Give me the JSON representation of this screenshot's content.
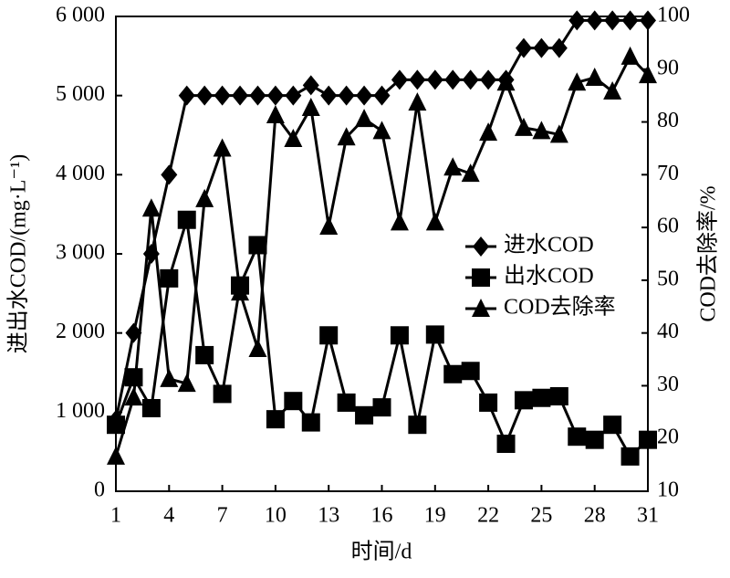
{
  "chart_data": {
    "type": "line",
    "x_label": "时间/d",
    "y_label": "进出水COD/(mg·L⁻¹)",
    "y2_label": "COD去除率/%",
    "x": [
      1,
      2,
      3,
      4,
      5,
      6,
      7,
      8,
      9,
      10,
      11,
      12,
      13,
      14,
      15,
      16,
      17,
      18,
      19,
      20,
      21,
      22,
      23,
      24,
      25,
      26,
      27,
      28,
      29,
      30,
      31
    ],
    "xlim": [
      1,
      31
    ],
    "xticks": [
      1,
      4,
      7,
      10,
      13,
      16,
      19,
      22,
      25,
      28,
      31
    ],
    "ylim": [
      0,
      6000
    ],
    "yticks": [
      0,
      {
        "value": 1000,
        "label": "1 000"
      },
      {
        "value": 2000,
        "label": "2 000"
      },
      {
        "value": 3000,
        "label": "3 000"
      },
      {
        "value": 4000,
        "label": "4 000"
      },
      {
        "value": 5000,
        "label": "5 000"
      },
      {
        "value": 6000,
        "label": "6 000"
      }
    ],
    "y2lim": [
      10,
      100
    ],
    "y2ticks": [
      10,
      20,
      30,
      40,
      50,
      60,
      70,
      80,
      90,
      100
    ],
    "legend": "right",
    "series": [
      {
        "name": "进水COD",
        "color": "#000000",
        "marker": "diamond",
        "values": [
          900,
          2000,
          3000,
          4000,
          5000,
          5000,
          5000,
          5000,
          5000,
          5000,
          5000,
          5130,
          5000,
          5000,
          5000,
          5000,
          5200,
          5200,
          5200,
          5200,
          5200,
          5200,
          5200,
          5600,
          5600,
          5600,
          5950,
          5950,
          5950,
          5950,
          5950
        ]
      },
      {
        "name": "出水COD",
        "color": "#000000",
        "marker": "square",
        "values": [
          840,
          1440,
          1050,
          2690,
          3430,
          1720,
          1230,
          2600,
          3110,
          910,
          1140,
          870,
          1970,
          1120,
          960,
          1060,
          1970,
          840,
          1980,
          1480,
          1520,
          1120,
          600,
          1150,
          1180,
          1200,
          690,
          650,
          840,
          440,
          650
        ]
      },
      {
        "name": "COD去除率",
        "color": "#000000",
        "marker": "triangle",
        "axis": "y2",
        "values": [
          16.6,
          27.8,
          63.6,
          31.3,
          30.4,
          65.4,
          75,
          47.7,
          37,
          81.3,
          76.8,
          82.7,
          60.2,
          77.1,
          80.6,
          78.3,
          61,
          83.7,
          61,
          71.4,
          70.2,
          78,
          87.5,
          78.9,
          78.3,
          77.6,
          87.5,
          88.4,
          85.8,
          92.4,
          88.9
        ]
      }
    ]
  }
}
